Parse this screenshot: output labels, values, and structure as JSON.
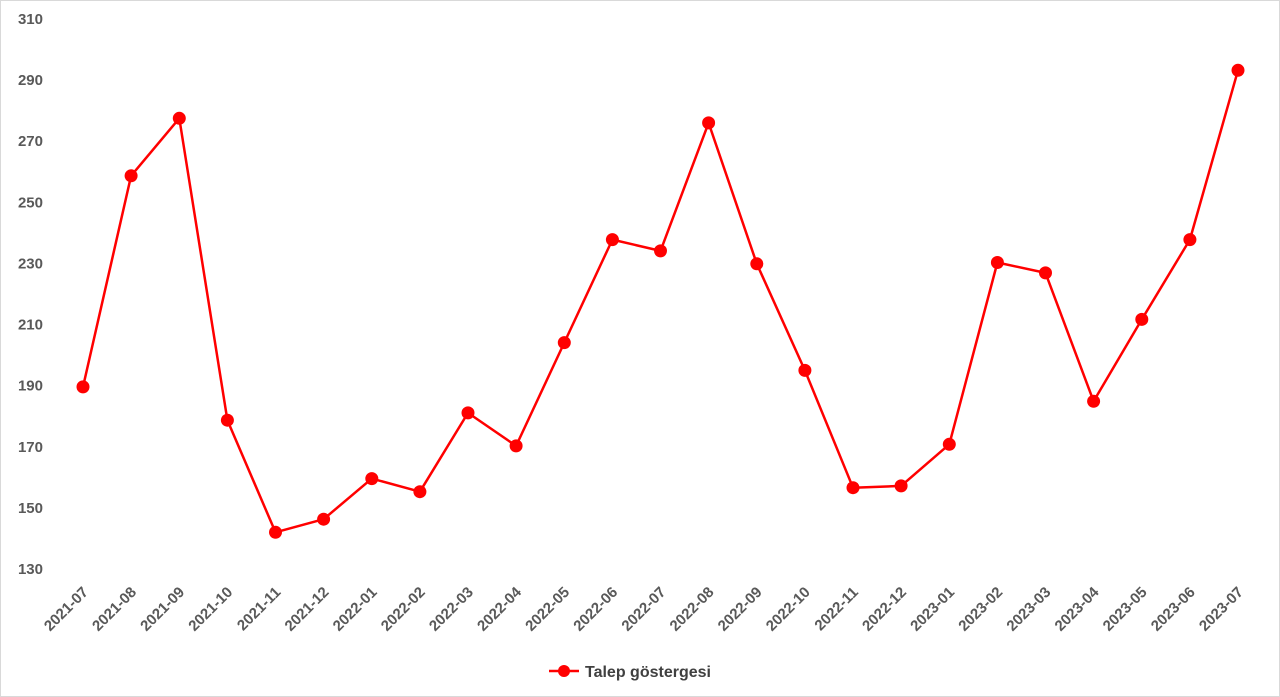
{
  "chart_data": {
    "type": "line",
    "title": "",
    "xlabel": "",
    "ylabel": "",
    "ylim": [
      130,
      310
    ],
    "yticks": [
      130,
      150,
      170,
      190,
      210,
      230,
      250,
      270,
      290,
      310
    ],
    "grid": false,
    "legend_position": "bottom-center",
    "categories": [
      "2021-07",
      "2021-08",
      "2021-09",
      "2021-10",
      "2021-11",
      "2021-12",
      "2022-01",
      "2022-02",
      "2022-03",
      "2022-04",
      "2022-05",
      "2022-06",
      "2022-07",
      "2022-08",
      "2022-09",
      "2022-10",
      "2022-11",
      "2022-12",
      "2023-01",
      "2023-02",
      "2023-03",
      "2023-04",
      "2023-05",
      "2023-06",
      "2023-07"
    ],
    "series": [
      {
        "name": "Talep göstergesi",
        "color": "#ff0000",
        "values": [
          189.6,
          258.7,
          277.5,
          178.7,
          142.0,
          146.3,
          159.6,
          155.3,
          181.1,
          170.3,
          204.1,
          237.8,
          234.1,
          276.0,
          229.9,
          195.0,
          156.6,
          157.2,
          170.8,
          230.3,
          226.9,
          184.9,
          211.7,
          237.8,
          293.2
        ]
      }
    ]
  }
}
